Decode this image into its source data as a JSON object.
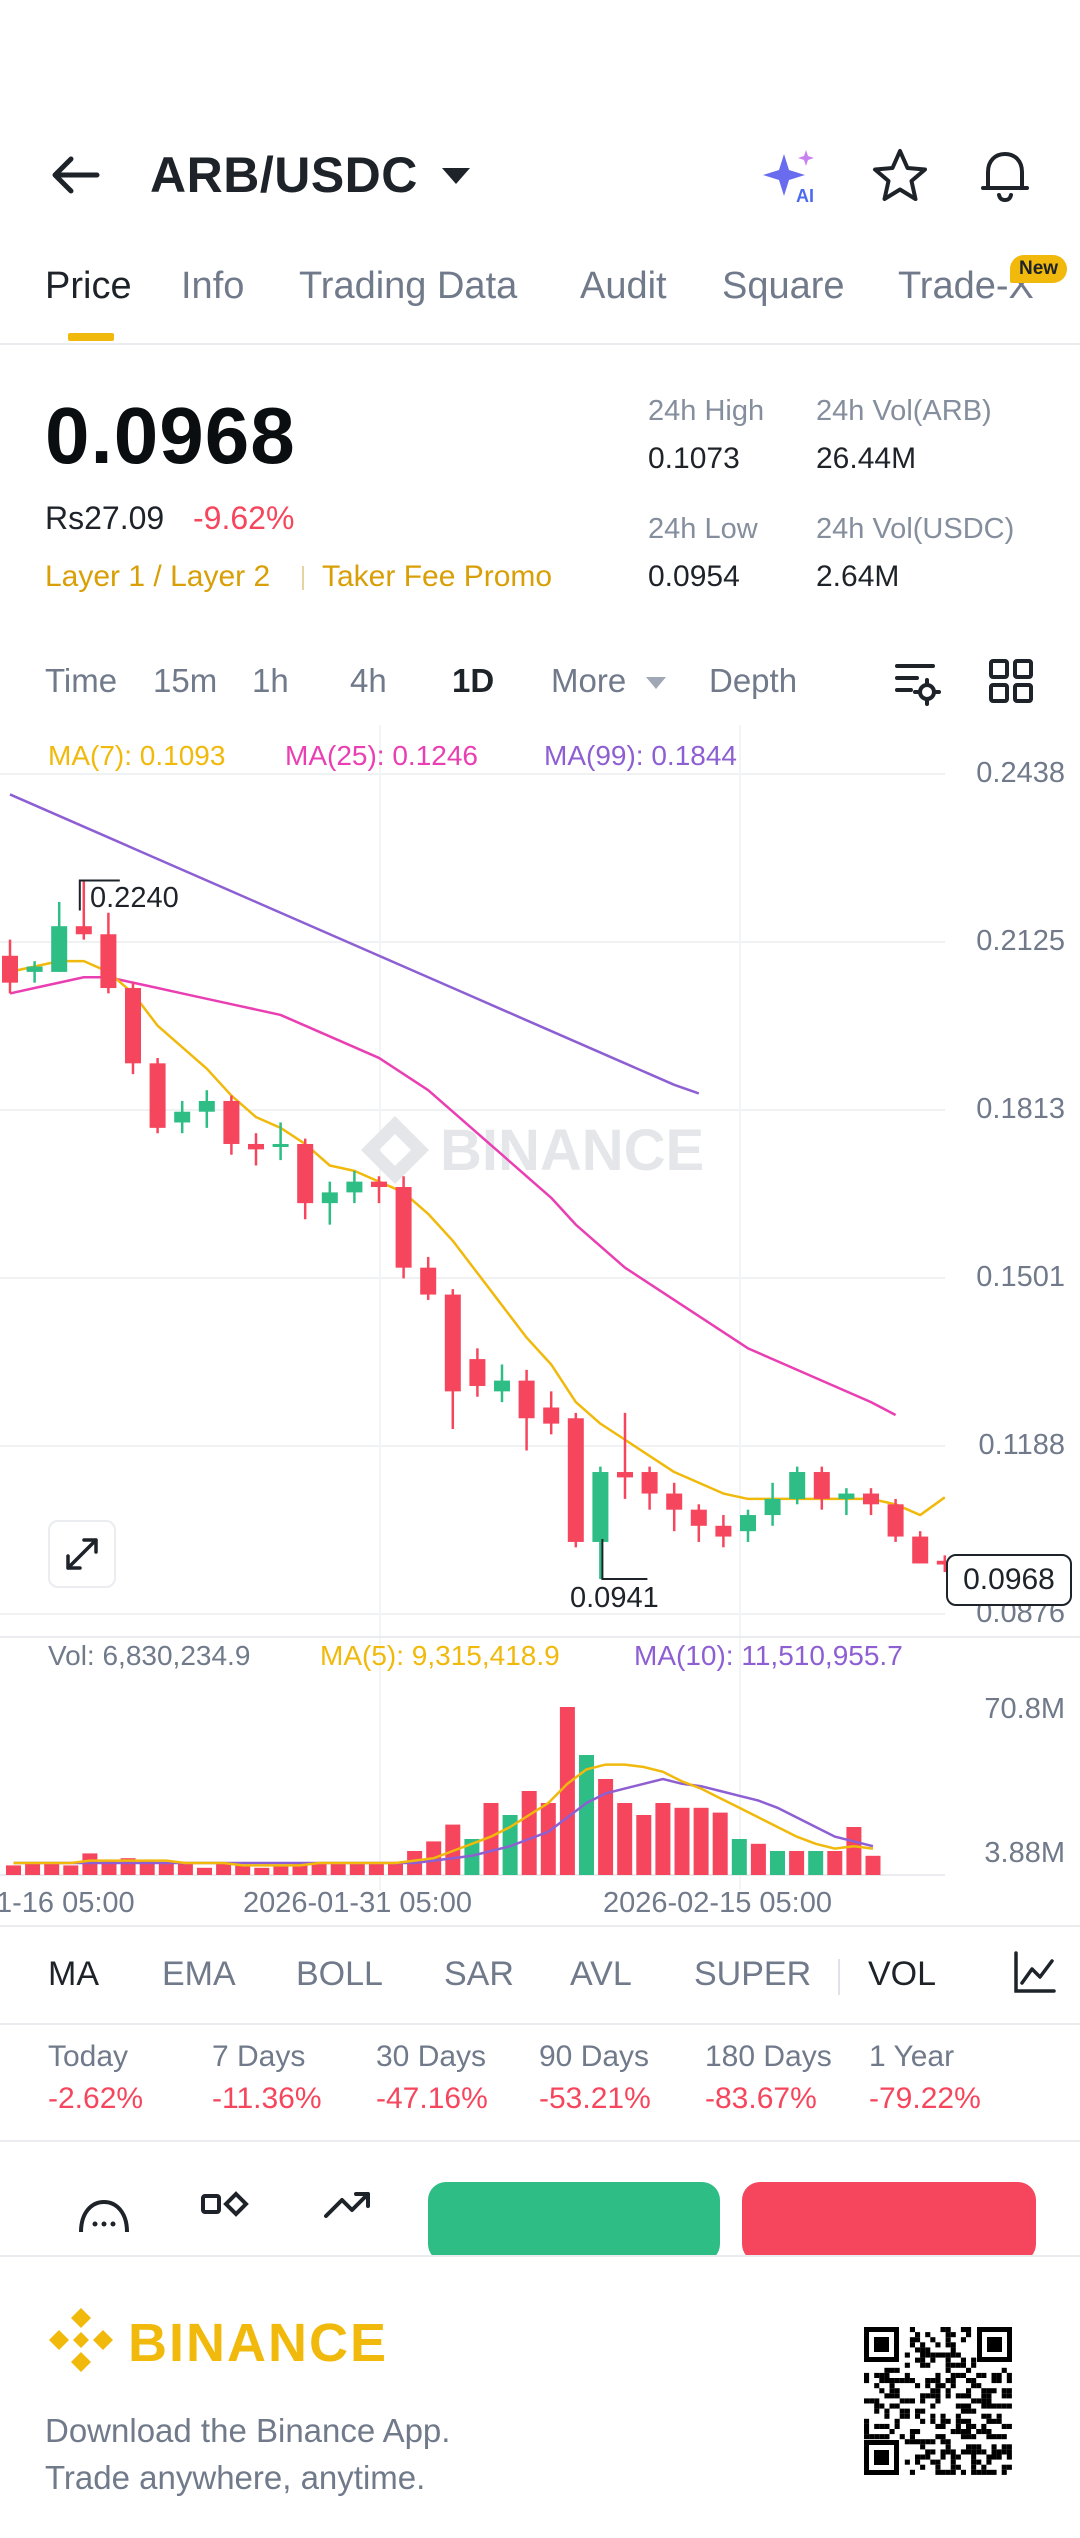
{
  "header": {
    "pair": "ARB/USDC"
  },
  "tabs": [
    {
      "label": "Price"
    },
    {
      "label": "Info"
    },
    {
      "label": "Trading Data"
    },
    {
      "label": "Audit"
    },
    {
      "label": "Square"
    },
    {
      "label": "Trade-X"
    }
  ],
  "new_badge": "New",
  "ticker": {
    "price": "0.0968",
    "fiat": "Rs27.09",
    "change": "-9.62%",
    "tag1": "Layer 1 / Layer 2",
    "tag2": "Taker Fee Promo",
    "high_label": "24h High",
    "high_value": "0.1073",
    "low_label": "24h Low",
    "low_value": "0.0954",
    "vol_base_label": "24h Vol(ARB)",
    "vol_base_value": "26.44M",
    "vol_quote_label": "24h Vol(USDC)",
    "vol_quote_value": "2.64M"
  },
  "toolbar": {
    "time": "Time",
    "m15": "15m",
    "h1": "1h",
    "h4": "4h",
    "d1": "1D",
    "more": "More",
    "depth": "Depth"
  },
  "colors": {
    "up": "#2ebd85",
    "down": "#f6465d",
    "ma7": "#f0b90b",
    "ma25": "#e93fb2",
    "ma99": "#8d5fd3",
    "accent": "#f0b90b"
  },
  "chart_data": {
    "type": "candlestick",
    "interval": "1D",
    "price_axis_ticks": [
      "0.2438",
      "0.2125",
      "0.1813",
      "0.1501",
      "0.1188",
      "0.0876"
    ],
    "ylim": [
      0.0876,
      0.2438
    ],
    "ma_legend": {
      "ma7": "MA(7): 0.1093",
      "ma25": "MA(25): 0.1246",
      "ma99": "MA(99): 0.1844"
    },
    "high_marker": "0.2240",
    "low_marker": "0.0941",
    "current_price": "0.0968",
    "candles": [
      {
        "o": 0.21,
        "h": 0.213,
        "l": 0.203,
        "c": 0.205
      },
      {
        "o": 0.207,
        "h": 0.209,
        "l": 0.205,
        "c": 0.208
      },
      {
        "o": 0.207,
        "h": 0.22,
        "l": 0.207,
        "c": 0.2155
      },
      {
        "o": 0.2155,
        "h": 0.224,
        "l": 0.213,
        "c": 0.214
      },
      {
        "o": 0.214,
        "h": 0.218,
        "l": 0.203,
        "c": 0.204
      },
      {
        "o": 0.204,
        "h": 0.205,
        "l": 0.188,
        "c": 0.19
      },
      {
        "o": 0.19,
        "h": 0.191,
        "l": 0.177,
        "c": 0.178
      },
      {
        "o": 0.179,
        "h": 0.183,
        "l": 0.177,
        "c": 0.181
      },
      {
        "o": 0.181,
        "h": 0.185,
        "l": 0.178,
        "c": 0.183
      },
      {
        "o": 0.183,
        "h": 0.184,
        "l": 0.173,
        "c": 0.175
      },
      {
        "o": 0.175,
        "h": 0.177,
        "l": 0.171,
        "c": 0.174
      },
      {
        "o": 0.175,
        "h": 0.179,
        "l": 0.172,
        "c": 0.175
      },
      {
        "o": 0.175,
        "h": 0.176,
        "l": 0.161,
        "c": 0.164
      },
      {
        "o": 0.164,
        "h": 0.168,
        "l": 0.16,
        "c": 0.166
      },
      {
        "o": 0.166,
        "h": 0.17,
        "l": 0.164,
        "c": 0.168
      },
      {
        "o": 0.168,
        "h": 0.169,
        "l": 0.164,
        "c": 0.167
      },
      {
        "o": 0.167,
        "h": 0.169,
        "l": 0.15,
        "c": 0.152
      },
      {
        "o": 0.152,
        "h": 0.154,
        "l": 0.146,
        "c": 0.147
      },
      {
        "o": 0.147,
        "h": 0.148,
        "l": 0.122,
        "c": 0.129
      },
      {
        "o": 0.135,
        "h": 0.137,
        "l": 0.128,
        "c": 0.13
      },
      {
        "o": 0.129,
        "h": 0.134,
        "l": 0.127,
        "c": 0.131
      },
      {
        "o": 0.131,
        "h": 0.133,
        "l": 0.118,
        "c": 0.124
      },
      {
        "o": 0.126,
        "h": 0.129,
        "l": 0.121,
        "c": 0.123
      },
      {
        "o": 0.124,
        "h": 0.125,
        "l": 0.1,
        "c": 0.101
      },
      {
        "o": 0.101,
        "h": 0.115,
        "l": 0.0941,
        "c": 0.114
      },
      {
        "o": 0.114,
        "h": 0.125,
        "l": 0.109,
        "c": 0.113
      },
      {
        "o": 0.114,
        "h": 0.115,
        "l": 0.107,
        "c": 0.11
      },
      {
        "o": 0.11,
        "h": 0.112,
        "l": 0.103,
        "c": 0.107
      },
      {
        "o": 0.107,
        "h": 0.108,
        "l": 0.101,
        "c": 0.104
      },
      {
        "o": 0.104,
        "h": 0.106,
        "l": 0.1,
        "c": 0.102
      },
      {
        "o": 0.103,
        "h": 0.107,
        "l": 0.101,
        "c": 0.106
      },
      {
        "o": 0.106,
        "h": 0.112,
        "l": 0.104,
        "c": 0.109
      },
      {
        "o": 0.109,
        "h": 0.115,
        "l": 0.108,
        "c": 0.114
      },
      {
        "o": 0.114,
        "h": 0.115,
        "l": 0.107,
        "c": 0.109
      },
      {
        "o": 0.109,
        "h": 0.111,
        "l": 0.106,
        "c": 0.11
      },
      {
        "o": 0.11,
        "h": 0.111,
        "l": 0.106,
        "c": 0.108
      },
      {
        "o": 0.108,
        "h": 0.109,
        "l": 0.101,
        "c": 0.102
      },
      {
        "o": 0.102,
        "h": 0.103,
        "l": 0.097,
        "c": 0.097
      },
      {
        "o": 0.0975,
        "h": 0.0985,
        "l": 0.0954,
        "c": 0.0968
      }
    ],
    "ma7": [
      0.207,
      0.208,
      0.209,
      0.209,
      0.207,
      0.203,
      0.197,
      0.193,
      0.189,
      0.184,
      0.18,
      0.178,
      0.175,
      0.171,
      0.17,
      0.168,
      0.166,
      0.162,
      0.157,
      0.151,
      0.145,
      0.139,
      0.134,
      0.127,
      0.123,
      0.12,
      0.117,
      0.114,
      0.112,
      0.11,
      0.109,
      0.109,
      0.109,
      0.109,
      0.109,
      0.109,
      0.108,
      0.106,
      0.1093
    ],
    "ma25": [
      0.203,
      0.204,
      0.205,
      0.206,
      0.206,
      0.205,
      0.204,
      0.203,
      0.202,
      0.201,
      0.2,
      0.199,
      0.197,
      0.195,
      0.193,
      0.191,
      0.188,
      0.185,
      0.181,
      0.177,
      0.173,
      0.169,
      0.165,
      0.16,
      0.156,
      0.152,
      0.149,
      0.146,
      0.143,
      0.14,
      0.137,
      0.135,
      0.133,
      0.131,
      0.129,
      0.127,
      0.1246
    ],
    "ma99": [
      0.24,
      0.238,
      0.236,
      0.234,
      0.232,
      0.23,
      0.228,
      0.226,
      0.224,
      0.222,
      0.22,
      0.218,
      0.216,
      0.214,
      0.212,
      0.21,
      0.208,
      0.206,
      0.204,
      0.202,
      0.2,
      0.198,
      0.196,
      0.194,
      0.192,
      0.19,
      0.188,
      0.186,
      0.1844
    ],
    "volume": {
      "legend": {
        "vol": "Vol: 6,830,234.9",
        "ma5": "MA(5): 9,315,418.9",
        "ma10": "MA(10): 11,510,955.7"
      },
      "axis_ticks": [
        "70.8M",
        "3.88M"
      ],
      "ylim": [
        0,
        75
      ],
      "values": [
        4,
        5,
        5,
        4,
        9,
        6,
        7,
        6,
        5,
        5,
        3,
        5,
        4,
        3,
        4,
        5,
        5,
        5,
        5,
        5,
        5,
        10,
        14,
        21,
        15,
        30,
        25,
        35,
        30,
        70,
        50,
        40,
        30,
        25,
        30,
        28,
        28,
        26,
        15,
        13,
        10,
        10,
        10,
        10,
        20,
        8
      ],
      "ma5": [
        5,
        5,
        5,
        5,
        6,
        6,
        6,
        6,
        6,
        5,
        5,
        5,
        4,
        4,
        4,
        4,
        5,
        5,
        5,
        5,
        5,
        6,
        7,
        10,
        13,
        16,
        20,
        25,
        30,
        38,
        44,
        46,
        46,
        45,
        43,
        39,
        36,
        32,
        28,
        24,
        20,
        16,
        13,
        11,
        12,
        11
      ],
      "ma10": [
        5,
        5,
        5,
        5,
        5,
        5,
        5,
        5,
        5,
        5,
        5,
        5,
        5,
        5,
        5,
        5,
        5,
        5,
        5,
        5,
        5,
        5,
        6,
        7,
        8,
        10,
        12,
        15,
        18,
        24,
        30,
        34,
        36,
        38,
        40,
        38,
        37,
        35,
        33,
        31,
        28,
        24,
        20,
        16,
        14,
        12
      ]
    },
    "dates": [
      "1-16 05:00",
      "2026-01-31 05:00",
      "2026-02-15 05:00"
    ]
  },
  "indicators": [
    "MA",
    "EMA",
    "BOLL",
    "SAR",
    "AVL",
    "SUPER",
    "VOL"
  ],
  "performance": [
    {
      "label": "Today",
      "value": "-2.62%"
    },
    {
      "label": "7 Days",
      "value": "-11.36%"
    },
    {
      "label": "30 Days",
      "value": "-47.16%"
    },
    {
      "label": "90 Days",
      "value": "-53.21%"
    },
    {
      "label": "180 Days",
      "value": "-83.67%"
    },
    {
      "label": "1 Year",
      "value": "-79.22%"
    }
  ],
  "watermark": "BINANCE",
  "footer": {
    "brand": "BINANCE",
    "line1": "Download the Binance App.",
    "line2": "Trade anywhere, anytime."
  }
}
